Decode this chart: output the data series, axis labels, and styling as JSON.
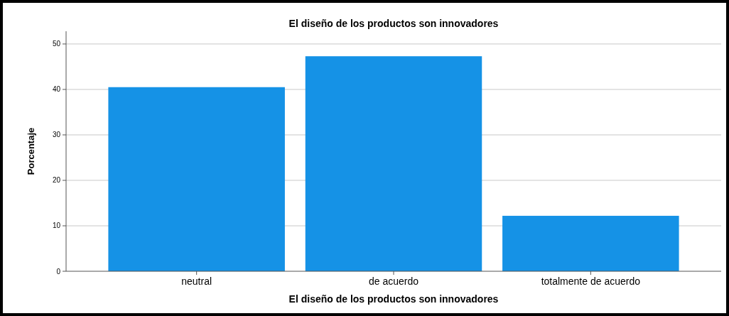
{
  "chart_data": {
    "type": "bar",
    "title": "El diseño de los productos son innovadores",
    "xlabel": "El diseño de los productos son innovadores",
    "ylabel": "Porcentaje",
    "categories": [
      "neutral",
      "de acuerdo",
      "totalmente de acuerdo"
    ],
    "values": [
      40.5,
      47.3,
      12.2
    ],
    "color": "#1592e6",
    "ylim": [
      0,
      52.8
    ],
    "yticks": [
      0,
      10,
      20,
      30,
      40,
      50
    ],
    "grid": "y"
  }
}
